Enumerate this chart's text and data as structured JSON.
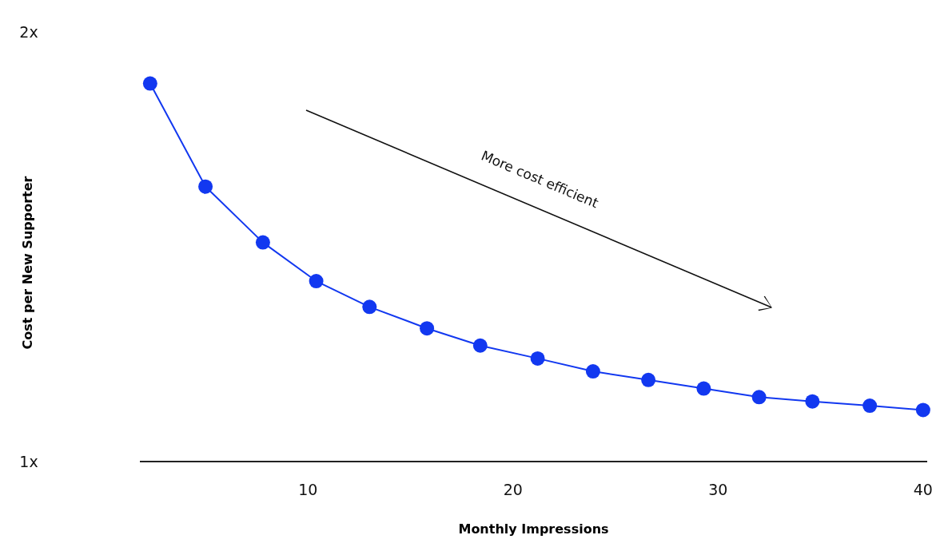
{
  "chart_data": {
    "type": "line",
    "xlabel": "Monthly Impressions",
    "ylabel": "Cost per New Supporter",
    "x": [
      2.3,
      5.0,
      7.8,
      10.4,
      13.0,
      15.8,
      18.4,
      21.2,
      23.9,
      26.6,
      29.3,
      32.0,
      34.6,
      37.4,
      40.0
    ],
    "series": [
      {
        "color": "#1238f0",
        "values": [
          1.88,
          1.64,
          1.51,
          1.42,
          1.36,
          1.31,
          1.27,
          1.24,
          1.21,
          1.19,
          1.17,
          1.15,
          1.14,
          1.13,
          1.12
        ]
      }
    ],
    "xlim": [
      1.8,
      40.2
    ],
    "ylim": [
      1,
      2
    ],
    "xticks": [
      10,
      20,
      30,
      40
    ],
    "yticks": [
      {
        "value": 1,
        "label": "1x"
      },
      {
        "value": 2,
        "label": "2x"
      }
    ],
    "marker": "circle",
    "line_style": "solid",
    "grid": false,
    "annotations": [
      "More cost efficient"
    ]
  }
}
